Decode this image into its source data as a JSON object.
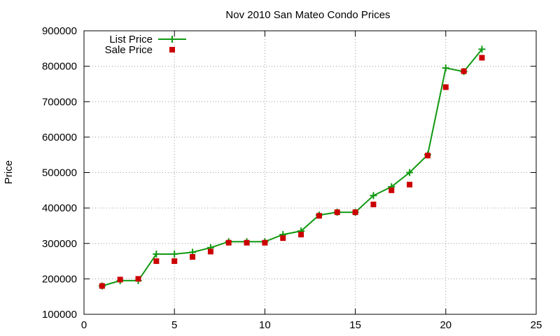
{
  "chart_data": {
    "type": "line",
    "title": "Nov 2010 San Mateo Condo Prices",
    "xlabel": "",
    "ylabel": "Price",
    "xlim": [
      0,
      25
    ],
    "ylim": [
      100000,
      900000
    ],
    "x_ticks": [
      0,
      5,
      10,
      15,
      20,
      25
    ],
    "y_ticks": [
      100000,
      200000,
      300000,
      400000,
      500000,
      600000,
      700000,
      800000,
      900000
    ],
    "grid": true,
    "legend_position": "top-left",
    "series": [
      {
        "name": "List Price",
        "style": "line-with-plus-markers",
        "color": "#109910",
        "x": [
          1,
          2,
          3,
          4,
          5,
          6,
          7,
          8,
          9,
          10,
          11,
          12,
          13,
          14,
          15,
          16,
          17,
          18,
          19,
          20,
          21,
          22
        ],
        "values": [
          180000,
          195000,
          195000,
          270000,
          270000,
          275000,
          288000,
          305000,
          305000,
          305000,
          325000,
          335000,
          380000,
          388000,
          388000,
          435000,
          460000,
          500000,
          550000,
          795000,
          785000,
          848000
        ]
      },
      {
        "name": "Sale Price",
        "style": "square-markers",
        "color": "#cc0000",
        "x": [
          1,
          2,
          3,
          4,
          5,
          6,
          7,
          8,
          9,
          10,
          11,
          12,
          13,
          14,
          15,
          16,
          17,
          18,
          19,
          20,
          21,
          22
        ],
        "values": [
          180000,
          198000,
          200000,
          250000,
          250000,
          262000,
          277000,
          302000,
          302000,
          302000,
          315000,
          325000,
          378000,
          388000,
          388000,
          410000,
          450000,
          466000,
          548000,
          741000,
          786000,
          824000
        ]
      }
    ]
  }
}
